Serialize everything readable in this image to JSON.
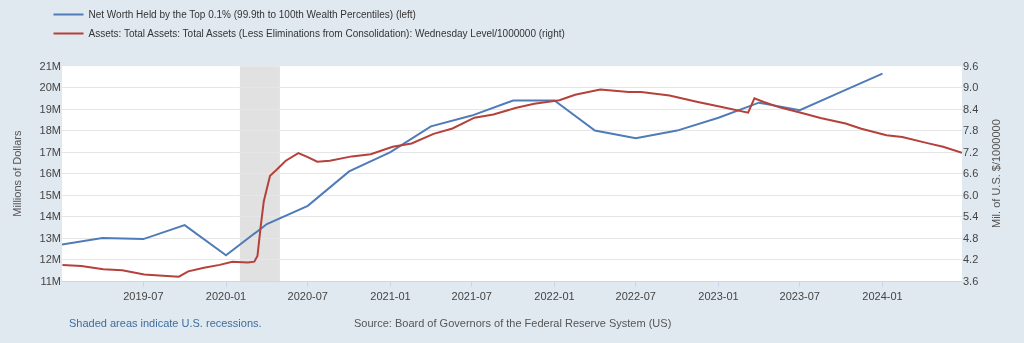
{
  "chart_data": {
    "type": "line",
    "ylabel": "Millions of Dollars",
    "y2label": "Mil. of U.S. $/1000000",
    "series": [
      {
        "name": "Net Worth Held by the Top 0.1% (99.9th to 100th Wealth Percentiles) (left)",
        "color": "#4f7cb8",
        "x": [
          "2019-01-01",
          "2019-04-01",
          "2019-07-01",
          "2019-10-01",
          "2020-01-01",
          "2020-04-01",
          "2020-07-01",
          "2020-10-01",
          "2021-01-01",
          "2021-04-01",
          "2021-07-01",
          "2021-10-01",
          "2022-01-01",
          "2022-04-01",
          "2022-07-01",
          "2022-10-01",
          "2023-01-01",
          "2023-04-01",
          "2023-07-01",
          "2023-10-01",
          "2024-01-01"
        ],
        "values": [
          12.7,
          13.0,
          12.95,
          13.6,
          12.2,
          13.65,
          14.5,
          16.1,
          17.0,
          18.2,
          18.7,
          19.4,
          19.4,
          18.0,
          17.65,
          18.0,
          18.6,
          19.3,
          18.95,
          19.8,
          20.65
        ]
      },
      {
        "name": "Assets: Total Assets: Total Assets (Less Eliminations from Consolidation): Wednesday Level/1000000 (right)",
        "color": "#b5413b",
        "axis": "y2",
        "x": [
          "2019-01-02",
          "2019-02-13",
          "2019-04-03",
          "2019-05-15",
          "2019-07-03",
          "2019-08-14",
          "2019-09-18",
          "2019-10-09",
          "2019-11-13",
          "2019-12-18",
          "2020-01-15",
          "2020-02-19",
          "2020-03-04",
          "2020-03-11",
          "2020-03-18",
          "2020-03-25",
          "2020-04-08",
          "2020-04-22",
          "2020-05-13",
          "2020-06-10",
          "2020-07-01",
          "2020-07-22",
          "2020-08-19",
          "2020-10-07",
          "2020-11-18",
          "2021-01-06",
          "2021-02-17",
          "2021-04-07",
          "2021-05-19",
          "2021-07-07",
          "2021-08-18",
          "2021-10-06",
          "2021-11-17",
          "2021-12-15",
          "2022-01-12",
          "2022-02-16",
          "2022-04-13",
          "2022-06-15",
          "2022-07-13",
          "2022-09-14",
          "2022-11-16",
          "2023-01-11",
          "2023-03-08",
          "2023-03-22",
          "2023-04-12",
          "2023-05-17",
          "2023-07-12",
          "2023-08-16",
          "2023-10-11",
          "2023-11-15",
          "2024-01-10",
          "2024-02-14",
          "2024-04-10",
          "2024-05-15",
          "2024-06-26"
        ],
        "values": [
          4.05,
          4.02,
          3.93,
          3.9,
          3.78,
          3.75,
          3.72,
          3.87,
          3.97,
          4.05,
          4.14,
          4.12,
          4.14,
          4.3,
          5.1,
          5.82,
          6.54,
          6.7,
          6.96,
          7.17,
          7.06,
          6.93,
          6.96,
          7.08,
          7.14,
          7.35,
          7.44,
          7.71,
          7.86,
          8.16,
          8.25,
          8.43,
          8.55,
          8.6,
          8.65,
          8.8,
          8.95,
          8.88,
          8.88,
          8.78,
          8.6,
          8.45,
          8.3,
          8.7,
          8.6,
          8.45,
          8.27,
          8.15,
          8.0,
          7.85,
          7.67,
          7.62,
          7.45,
          7.35,
          7.18
        ]
      }
    ],
    "xlim": [
      "2019-01-01",
      "2024-06-26"
    ],
    "xticks": [
      {
        "value": "2019-07-01",
        "label": "2019-07"
      },
      {
        "value": "2020-01-01",
        "label": "2020-01"
      },
      {
        "value": "2020-07-01",
        "label": "2020-07"
      },
      {
        "value": "2021-01-01",
        "label": "2021-01"
      },
      {
        "value": "2021-07-01",
        "label": "2021-07"
      },
      {
        "value": "2022-01-01",
        "label": "2022-01"
      },
      {
        "value": "2022-07-01",
        "label": "2022-07"
      },
      {
        "value": "2023-01-01",
        "label": "2023-01"
      },
      {
        "value": "2023-07-01",
        "label": "2023-07"
      },
      {
        "value": "2024-01-01",
        "label": "2024-01"
      }
    ],
    "ylim": [
      11,
      21
    ],
    "yticks": [
      {
        "value": 11,
        "label": "11M"
      },
      {
        "value": 12,
        "label": "12M"
      },
      {
        "value": 13,
        "label": "13M"
      },
      {
        "value": 14,
        "label": "14M"
      },
      {
        "value": 15,
        "label": "15M"
      },
      {
        "value": 16,
        "label": "16M"
      },
      {
        "value": 17,
        "label": "17M"
      },
      {
        "value": 18,
        "label": "18M"
      },
      {
        "value": 19,
        "label": "19M"
      },
      {
        "value": 20,
        "label": "20M"
      },
      {
        "value": 21,
        "label": "21M"
      }
    ],
    "y2lim": [
      3.6,
      9.6
    ],
    "y2ticks": [
      {
        "value": 3.6,
        "label": "3.6"
      },
      {
        "value": 4.2,
        "label": "4.2"
      },
      {
        "value": 4.8,
        "label": "4.8"
      },
      {
        "value": 5.4,
        "label": "5.4"
      },
      {
        "value": 6.0,
        "label": "6.0"
      },
      {
        "value": 6.6,
        "label": "6.6"
      },
      {
        "value": 7.2,
        "label": "7.2"
      },
      {
        "value": 7.8,
        "label": "7.8"
      },
      {
        "value": 8.4,
        "label": "8.4"
      },
      {
        "value": 9.0,
        "label": "9.0"
      },
      {
        "value": 9.6,
        "label": "9.6"
      }
    ],
    "bands": [
      {
        "axis": "x",
        "from": "2020-02-01",
        "to": "2020-04-30",
        "color": "#e1e1e1"
      }
    ],
    "grid": "y",
    "legend": "top left",
    "marker": "none",
    "line_style": "solid",
    "annotations": [
      "Shaded areas indicate U.S. recessions.",
      "Source: Board of Governors of the Federal Reserve System (US)"
    ]
  }
}
